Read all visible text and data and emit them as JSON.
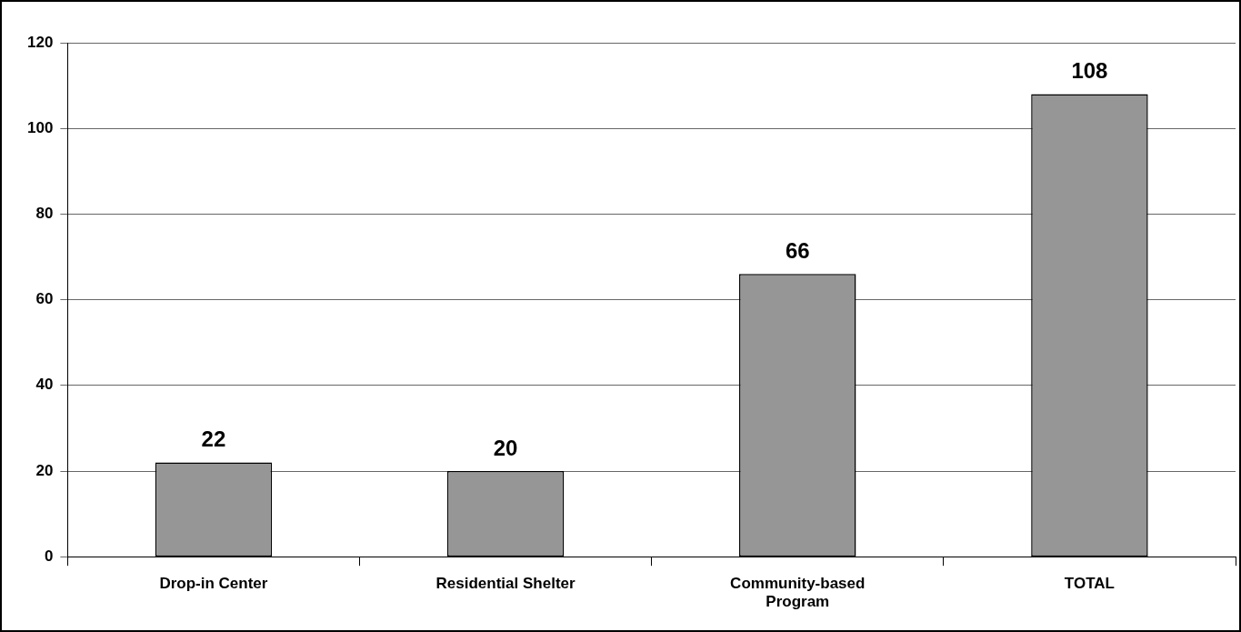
{
  "chart_data": {
    "type": "bar",
    "categories": [
      "Drop-in Center",
      "Residential Shelter",
      "Community-based Program",
      "TOTAL"
    ],
    "values": [
      22,
      20,
      66,
      108
    ],
    "color": "#969696",
    "ylim": [
      0,
      120
    ],
    "yticks": [
      0,
      20,
      40,
      60,
      80,
      100,
      120
    ],
    "grid": "y",
    "legend": false,
    "data_labels": true
  }
}
